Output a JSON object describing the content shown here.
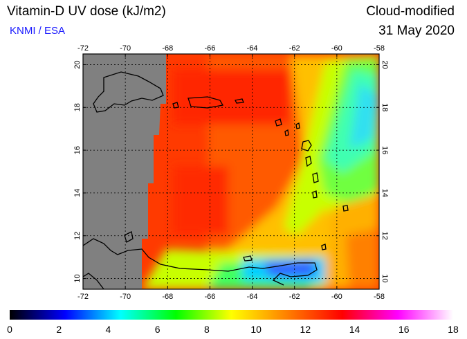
{
  "header": {
    "title": "Vitamin-D UV dose (kJ/m2)",
    "source": "KNMI / ESA",
    "product": "Cloud-modified",
    "date": "31 May 2020"
  },
  "map": {
    "lon_range": [
      -72,
      -58
    ],
    "lat_range": [
      9.5,
      20.5
    ],
    "lon_ticks": [
      -72,
      -70,
      -68,
      -66,
      -64,
      -62,
      -60,
      -58
    ],
    "lat_ticks": [
      10,
      12,
      14,
      16,
      18,
      20
    ],
    "no_data_color": "#808080",
    "grid": "dotted"
  },
  "colorbar": {
    "min": 0,
    "max": 18,
    "ticks": [
      0,
      2,
      4,
      6,
      8,
      10,
      12,
      14,
      16,
      18
    ],
    "stops": [
      "#000000",
      "#0000ff",
      "#00ffff",
      "#00ff00",
      "#ffff00",
      "#ff8000",
      "#ff0000",
      "#ff00ff",
      "#ffffff"
    ]
  }
}
